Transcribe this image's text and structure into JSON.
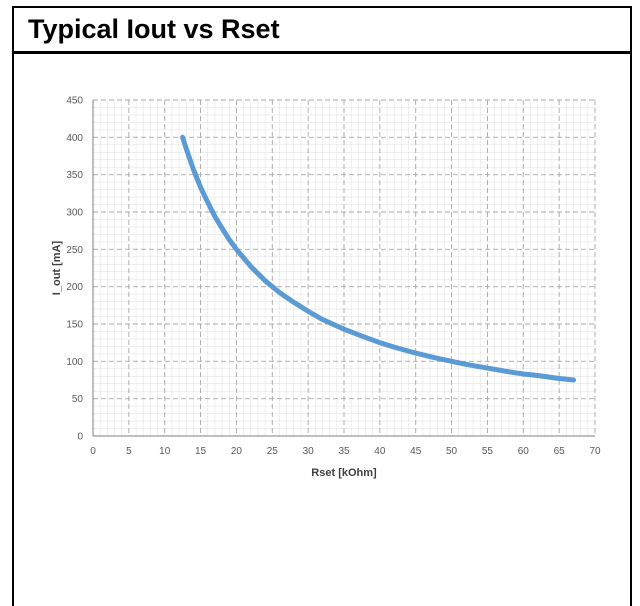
{
  "header": {
    "title": "Typical Iout vs Rset"
  },
  "chart_data": {
    "type": "line",
    "xlabel": "Rset [kOhm]",
    "ylabel": "I_out [mA]",
    "xlim": [
      0,
      70
    ],
    "ylim": [
      0,
      450
    ],
    "x_ticks": [
      0,
      5,
      10,
      15,
      20,
      25,
      30,
      35,
      40,
      45,
      50,
      55,
      60,
      65,
      70
    ],
    "y_ticks": [
      0,
      50,
      100,
      150,
      200,
      250,
      300,
      350,
      400,
      450
    ],
    "grid": {
      "major": true,
      "minor": true,
      "style": "dashed"
    },
    "legend": "none",
    "series": [
      {
        "color": "#5b9bd5",
        "x": [
          12.5,
          13,
          14,
          15,
          16,
          17,
          18,
          19,
          20,
          22,
          24,
          26,
          28,
          30,
          32,
          35,
          38,
          40,
          42,
          45,
          48,
          50,
          52,
          55,
          58,
          60,
          62,
          65,
          67
        ],
        "y": [
          400,
          385,
          357,
          333,
          313,
          294,
          278,
          263,
          250,
          227,
          208,
          192,
          179,
          167,
          156,
          143,
          132,
          125,
          119,
          111,
          104,
          100,
          96,
          91,
          86,
          83,
          81,
          77,
          75
        ]
      }
    ]
  }
}
